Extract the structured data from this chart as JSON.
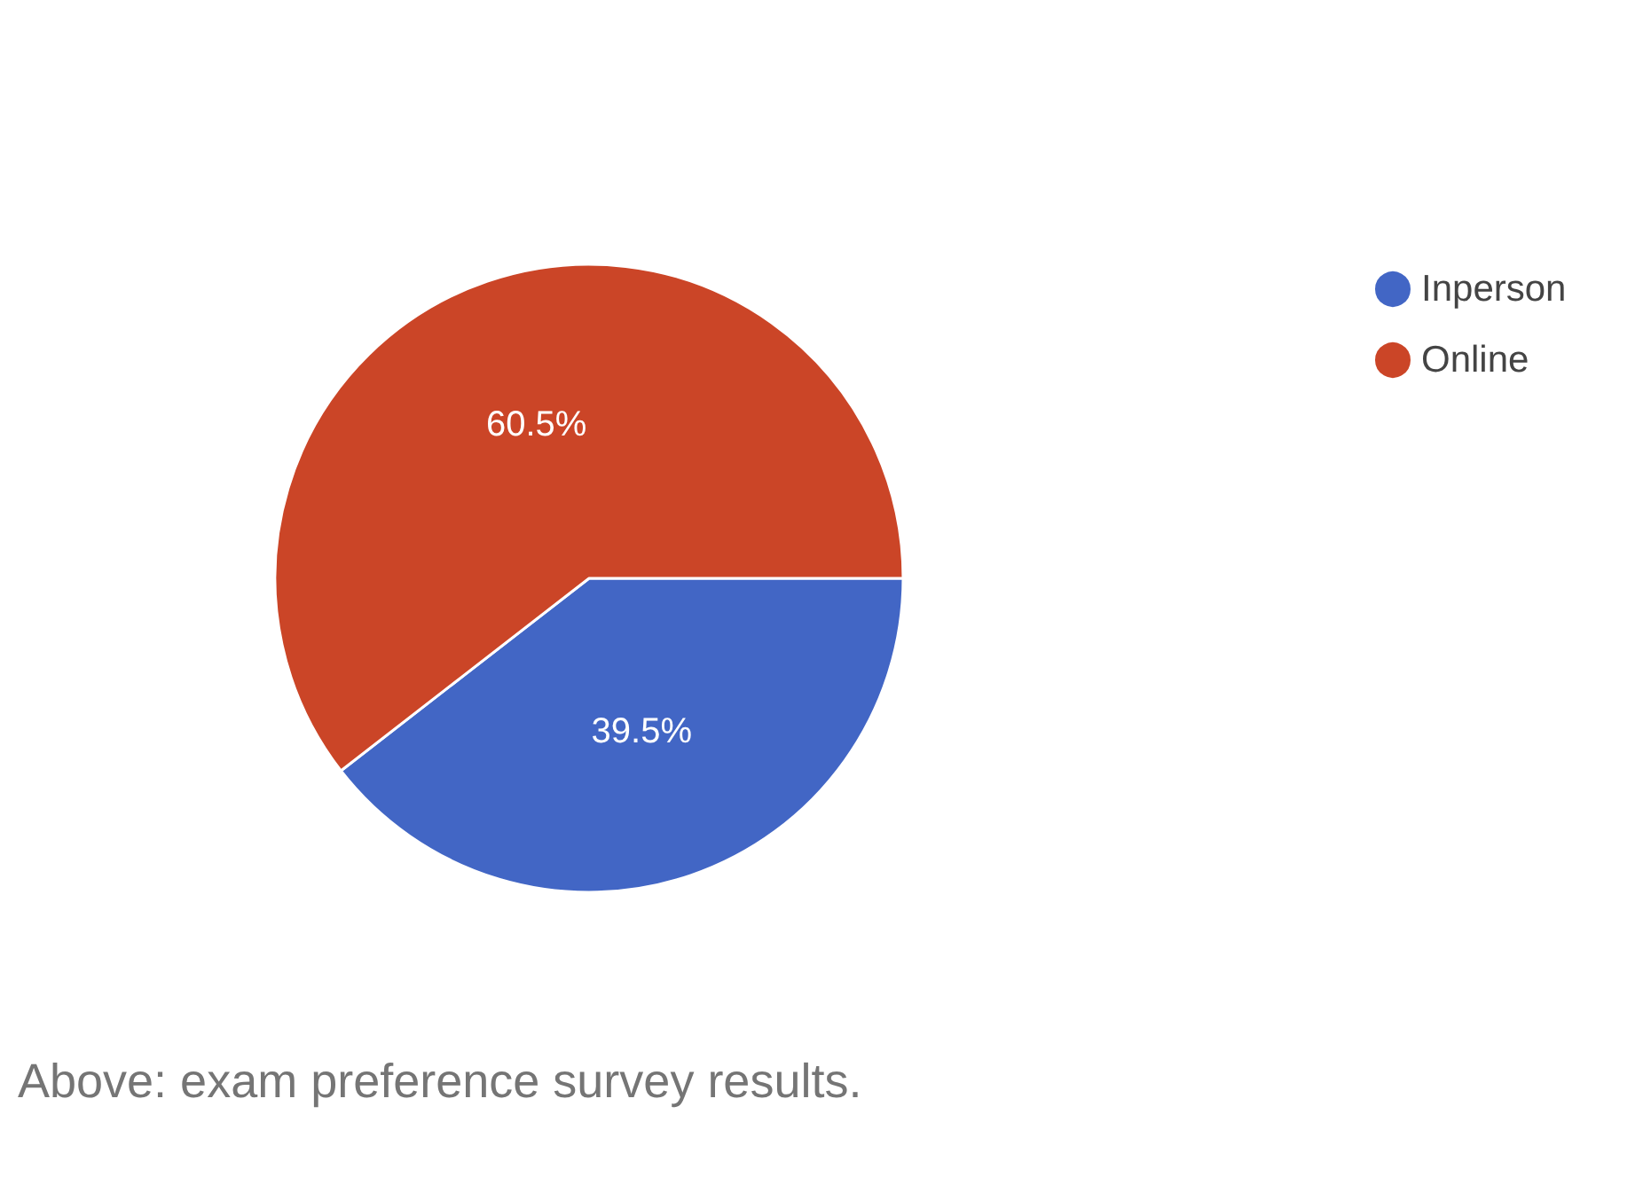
{
  "chart_data": {
    "type": "pie",
    "categories": [
      "Inperson",
      "Online"
    ],
    "values": [
      39.5,
      60.5
    ],
    "colors": [
      "#4266c5",
      "#cb4527"
    ],
    "value_labels": [
      "39.5%",
      "60.5%"
    ],
    "legend": "top right",
    "annotations": [
      "Above: exam preference survey results."
    ]
  }
}
